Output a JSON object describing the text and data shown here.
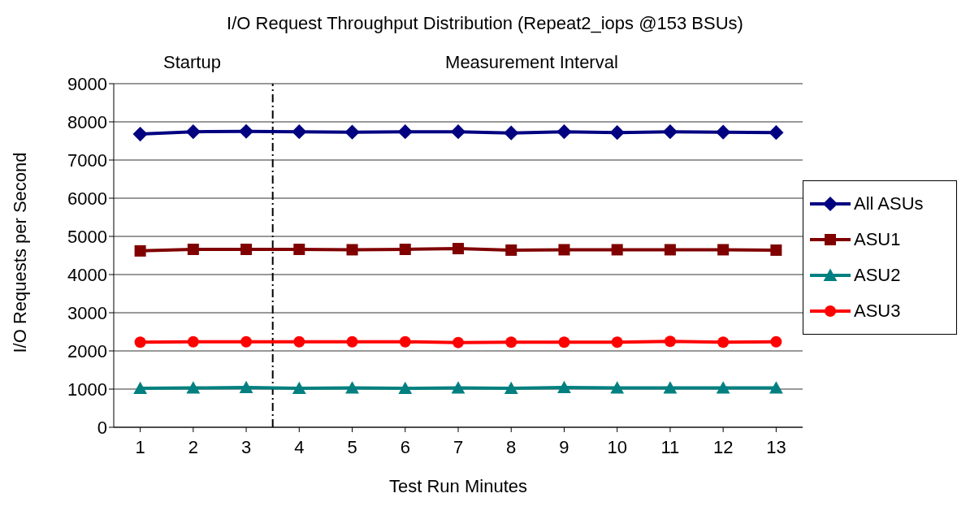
{
  "chart_data": {
    "type": "line",
    "title": "I/O Request Throughput Distribution (Repeat2_iops @153 BSUs)",
    "xlabel": "Test Run Minutes",
    "ylabel": "I/O Requests per Second",
    "x": [
      1,
      2,
      3,
      4,
      5,
      6,
      7,
      8,
      9,
      10,
      11,
      12,
      13
    ],
    "xlim": [
      0.5,
      13.5
    ],
    "xticks": [
      1,
      2,
      3,
      4,
      5,
      6,
      7,
      8,
      9,
      10,
      11,
      12,
      13
    ],
    "ylim": [
      0,
      9000
    ],
    "yticks": [
      0,
      1000,
      2000,
      3000,
      4000,
      5000,
      6000,
      7000,
      8000,
      9000
    ],
    "grid": "y",
    "legend": "right",
    "series": [
      {
        "name": "All ASUs",
        "color": "#000080",
        "marker": "diamond",
        "values": [
          7680,
          7740,
          7750,
          7740,
          7730,
          7740,
          7740,
          7710,
          7740,
          7720,
          7740,
          7730,
          7720
        ]
      },
      {
        "name": "ASU1",
        "color": "#800000",
        "marker": "square",
        "values": [
          4620,
          4660,
          4660,
          4660,
          4650,
          4660,
          4680,
          4640,
          4650,
          4650,
          4650,
          4650,
          4640
        ]
      },
      {
        "name": "ASU2",
        "color": "#008080",
        "marker": "triangle",
        "values": [
          1020,
          1030,
          1040,
          1020,
          1030,
          1020,
          1030,
          1020,
          1040,
          1030,
          1030,
          1030,
          1030
        ]
      },
      {
        "name": "ASU3",
        "color": "#ff0000",
        "marker": "circle",
        "values": [
          2230,
          2240,
          2240,
          2240,
          2240,
          2240,
          2220,
          2230,
          2230,
          2230,
          2250,
          2230,
          2240
        ]
      }
    ],
    "ref_lines": [
      {
        "axis": "x",
        "value": 3.5,
        "color": "#000000",
        "line_style": "dashed"
      }
    ],
    "annotations": [
      "Startup",
      "Measurement Interval"
    ]
  }
}
